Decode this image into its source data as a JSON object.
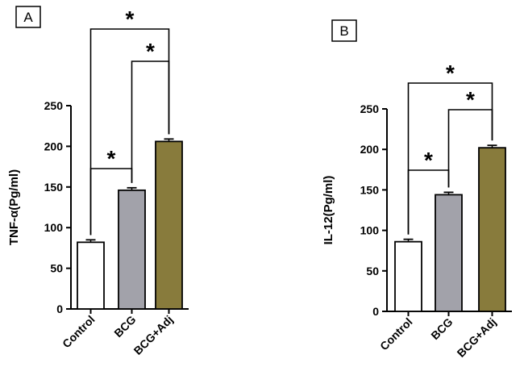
{
  "chart_data": [
    {
      "type": "bar",
      "panel": "A",
      "categories": [
        "Control",
        "BCG",
        "BCG+Adj"
      ],
      "values": [
        82,
        146,
        206
      ],
      "errors": [
        3,
        3,
        3
      ],
      "ylabel": "TNF-α(Pg/ml)",
      "ylim": [
        0,
        250
      ],
      "yticks": [
        0,
        50,
        100,
        150,
        200,
        250
      ],
      "colors": [
        "#ffffff",
        "#a2a2aa",
        "#887b3c"
      ],
      "significance": [
        {
          "from": 0,
          "to": 1,
          "label": "*"
        },
        {
          "from": 1,
          "to": 2,
          "label": "*"
        },
        {
          "from": 0,
          "to": 2,
          "label": "*"
        }
      ]
    },
    {
      "type": "bar",
      "panel": "B",
      "categories": [
        "Control",
        "BCG",
        "BCG+Adj"
      ],
      "values": [
        86,
        144,
        202
      ],
      "errors": [
        3,
        3,
        3
      ],
      "ylabel": "IL-12(Pg/ml)",
      "ylim": [
        0,
        250
      ],
      "yticks": [
        0,
        50,
        100,
        150,
        200,
        250
      ],
      "colors": [
        "#ffffff",
        "#a2a2aa",
        "#887b3c"
      ],
      "significance": [
        {
          "from": 0,
          "to": 1,
          "label": "*"
        },
        {
          "from": 1,
          "to": 2,
          "label": "*"
        },
        {
          "from": 0,
          "to": 2,
          "label": "*"
        }
      ]
    }
  ]
}
